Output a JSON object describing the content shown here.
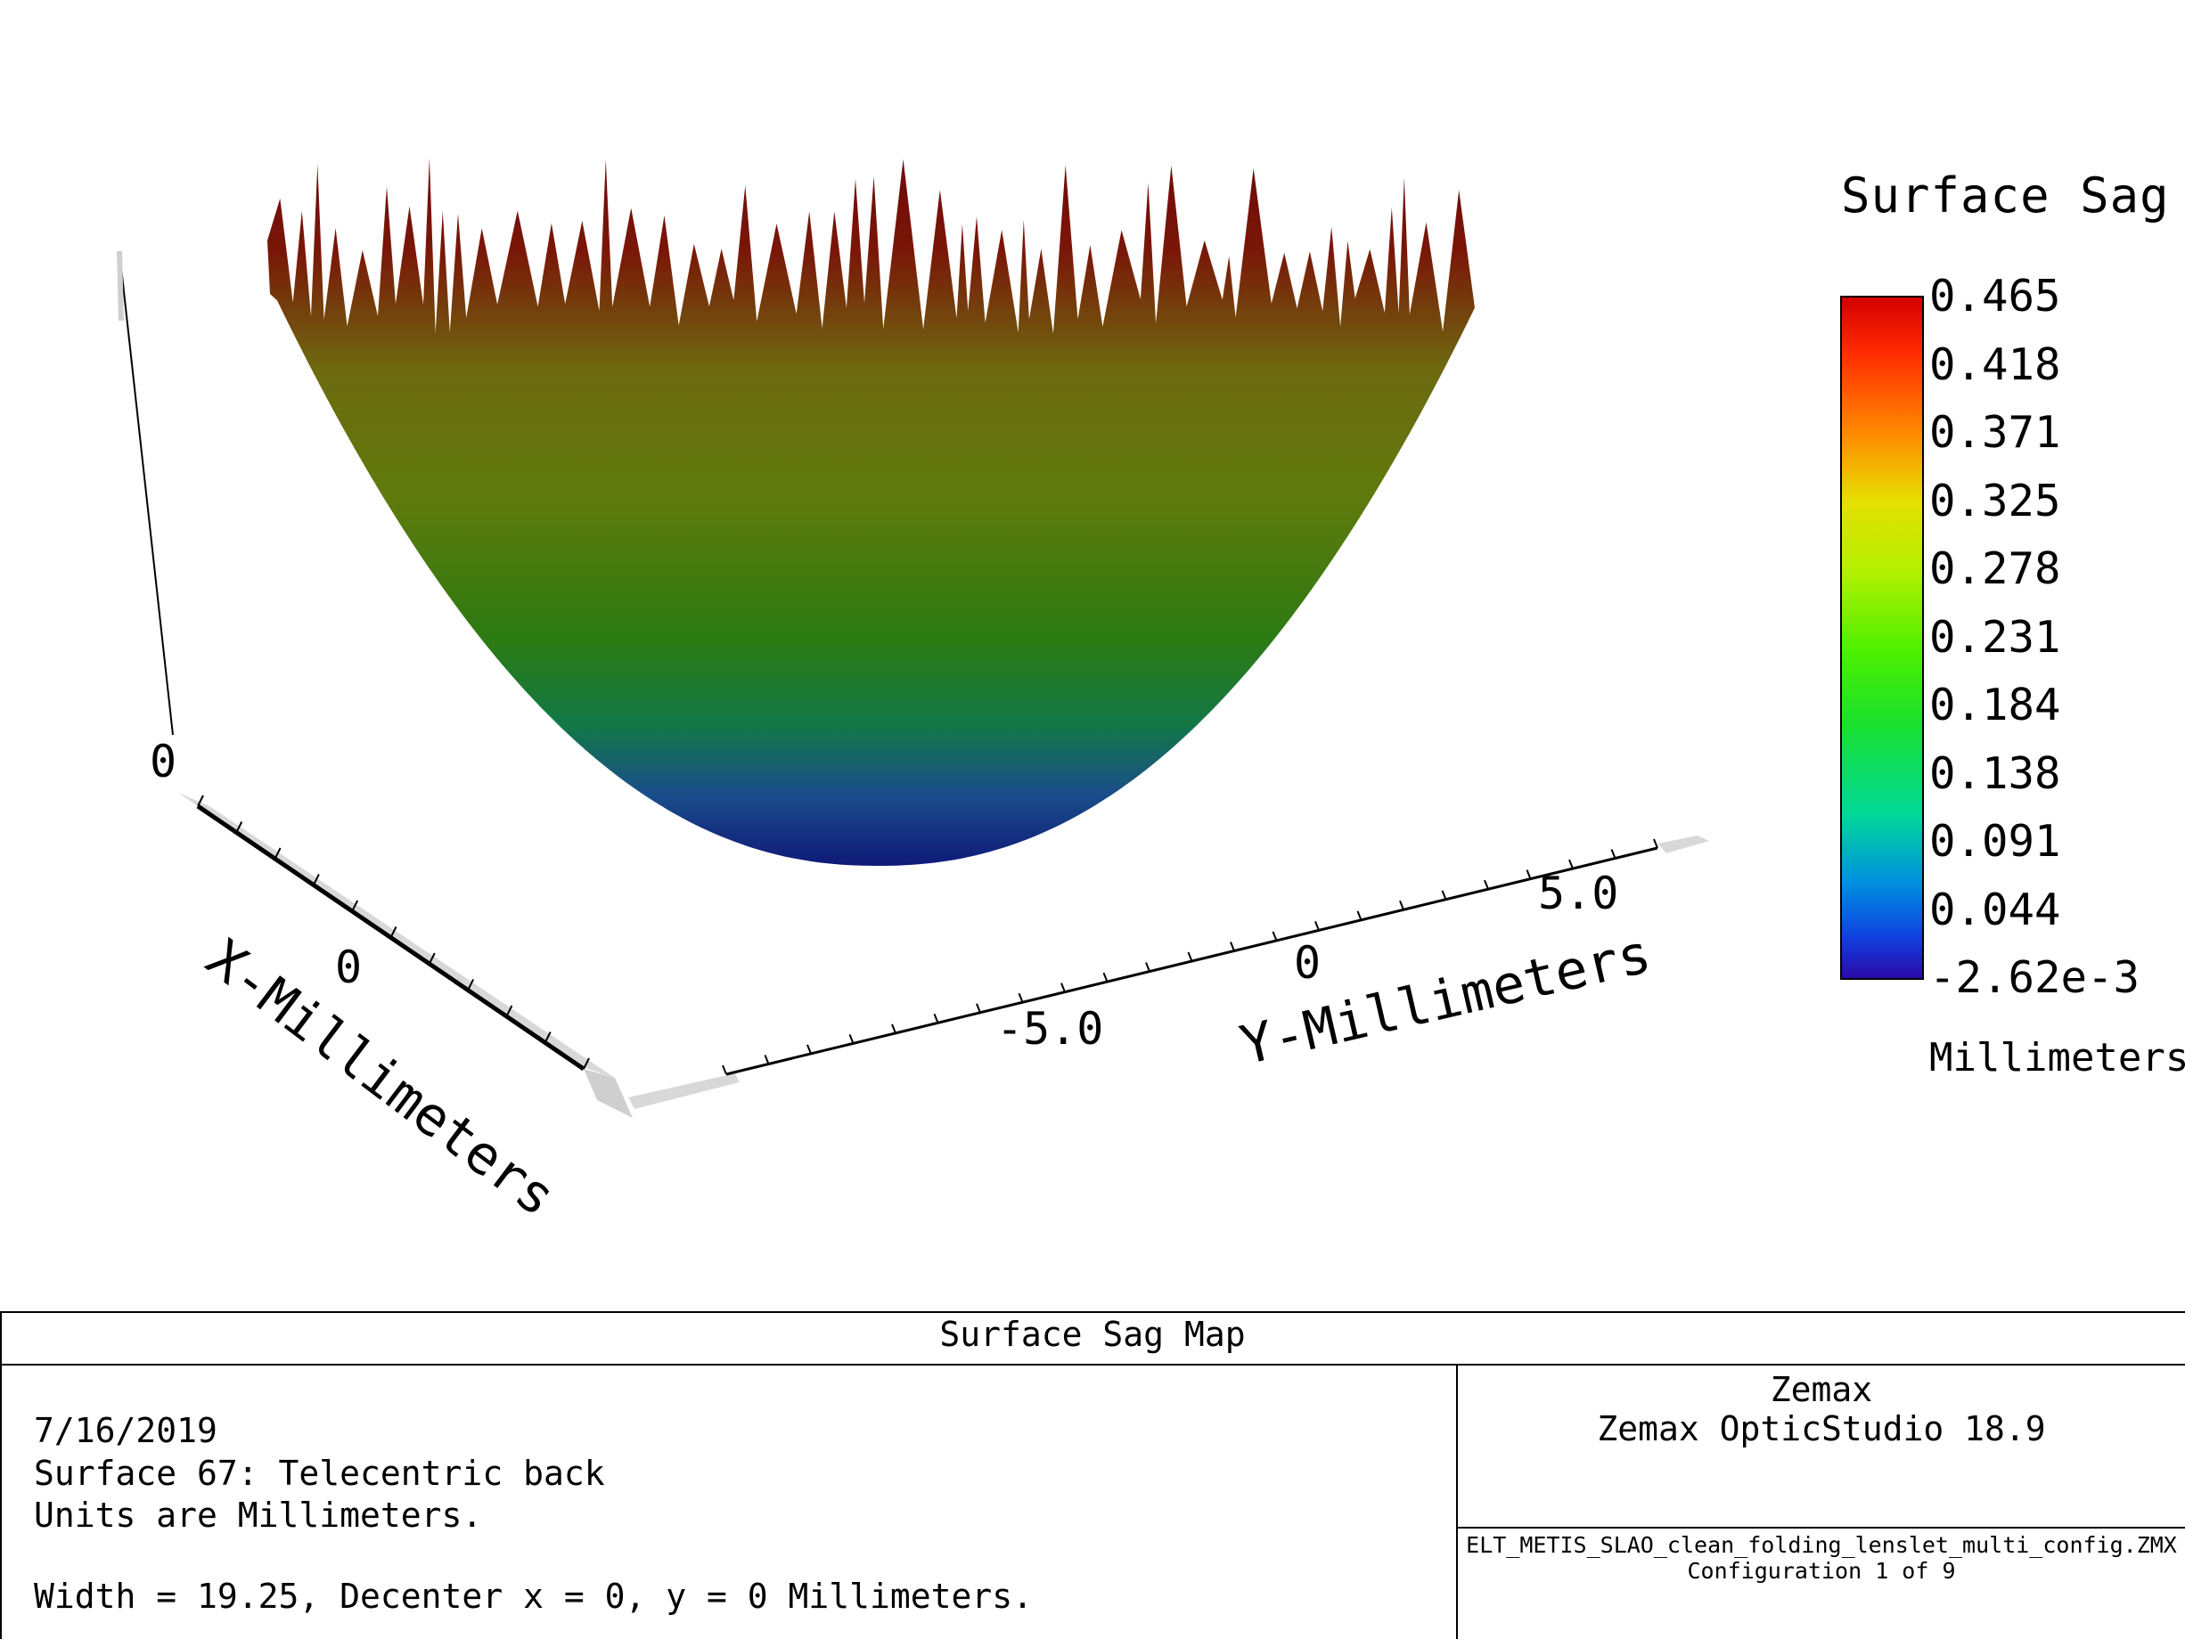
{
  "chart_data": {
    "type": "surface",
    "title": "Surface Sag",
    "x_axis": {
      "label": "X-Millimeters",
      "ticks": [
        "0"
      ]
    },
    "y_axis": {
      "label": "Y-Millimeters",
      "ticks": [
        "-5.0",
        "0",
        "5.0"
      ]
    },
    "z_axis": {
      "ticks": [
        "0"
      ]
    },
    "colorbar": {
      "labels": [
        "0.465",
        "0.418",
        "0.371",
        "0.325",
        "0.278",
        "0.231",
        "0.184",
        "0.138",
        "0.091",
        "0.044",
        "-2.62e-3"
      ],
      "units": "Millimeters",
      "min": -0.00262,
      "max": 0.465
    },
    "surface": {
      "shape": "paraboloid bowl",
      "width_mm": 19.25,
      "sag_min": -0.00262,
      "sag_max": 0.465,
      "rim": "jagged spikes at edge"
    }
  },
  "footer": {
    "title": "Surface Sag Map",
    "date": "7/16/2019",
    "surface_line": "Surface 67: Telecentric back",
    "units_line": "Units are Millimeters.",
    "width_line": "Width = 19.25, Decenter x = 0, y = 0 Millimeters.",
    "vendor": "Zemax",
    "product": "Zemax OpticStudio 18.9",
    "file": "ELT_METIS_SLAO_clean_folding_lenslet_multi_config.ZMX",
    "config": "Configuration 1 of 9"
  }
}
